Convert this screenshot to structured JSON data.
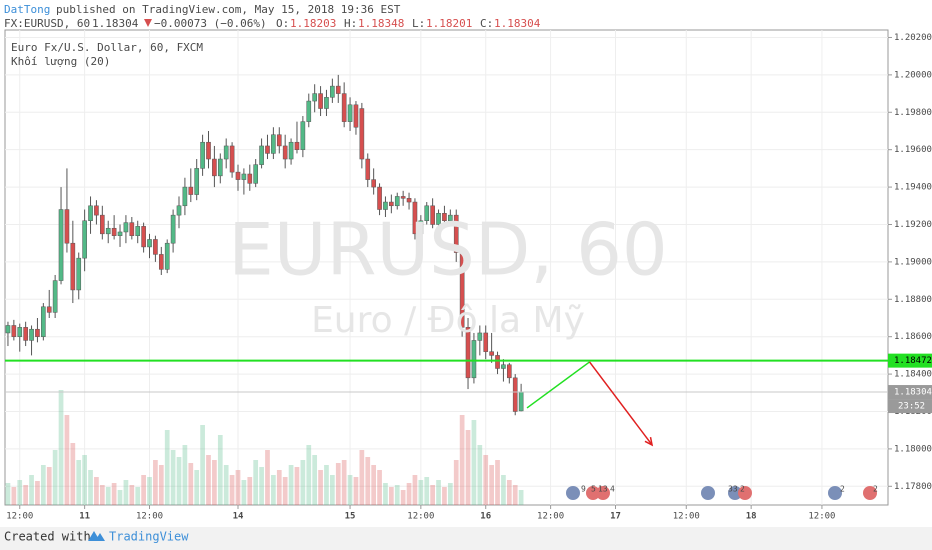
{
  "header": {
    "author": "DatTong",
    "published": "published on TradingView.com, May 15, 2018 19:36 EST",
    "symbol": "FX:EURUSD, 60",
    "last": "1.18304",
    "change": "−0.00073 (−0.06%)",
    "open_label": "O:",
    "open": "1.18203",
    "high_label": "H:",
    "high": "1.18348",
    "low_label": "L:",
    "low": "1.18201",
    "close_label": "C:",
    "close": "1.18304"
  },
  "chart_data": {
    "type": "candlestick",
    "legend": [
      "Euro Fx/U.S. Dollar, 60, FXCM",
      "Khối lượng (20)"
    ],
    "watermark": "EURUSD, 60",
    "watermark_sub": "Euro / Đô la Mỹ",
    "up_color": "#53b987",
    "down_color": "#d64f4f",
    "ohlc": [
      [
        1.1862,
        1.1868,
        1.1855,
        1.1866
      ],
      [
        1.1866,
        1.1869,
        1.1858,
        1.186
      ],
      [
        1.186,
        1.1867,
        1.1852,
        1.1865
      ],
      [
        1.1865,
        1.1868,
        1.1855,
        1.1858
      ],
      [
        1.1858,
        1.1866,
        1.185,
        1.1864
      ],
      [
        1.1864,
        1.187,
        1.1857,
        1.186
      ],
      [
        1.186,
        1.1878,
        1.1858,
        1.1876
      ],
      [
        1.1876,
        1.1885,
        1.187,
        1.1873
      ],
      [
        1.1873,
        1.1893,
        1.187,
        1.189
      ],
      [
        1.189,
        1.194,
        1.1888,
        1.1928
      ],
      [
        1.1928,
        1.195,
        1.1905,
        1.191
      ],
      [
        1.191,
        1.1922,
        1.1878,
        1.1885
      ],
      [
        1.1885,
        1.1905,
        1.188,
        1.1902
      ],
      [
        1.1902,
        1.1928,
        1.1895,
        1.1922
      ],
      [
        1.1922,
        1.1935,
        1.1915,
        1.193
      ],
      [
        1.193,
        1.1933,
        1.192,
        1.1925
      ],
      [
        1.1925,
        1.193,
        1.1912,
        1.1915
      ],
      [
        1.1915,
        1.1922,
        1.191,
        1.1918
      ],
      [
        1.1918,
        1.1925,
        1.1912,
        1.1914
      ],
      [
        1.1914,
        1.192,
        1.1908,
        1.1916
      ],
      [
        1.1916,
        1.1925,
        1.191,
        1.1921
      ],
      [
        1.1921,
        1.1924,
        1.1912,
        1.1914
      ],
      [
        1.1914,
        1.1922,
        1.191,
        1.1919
      ],
      [
        1.1919,
        1.1921,
        1.1905,
        1.1908
      ],
      [
        1.1908,
        1.1915,
        1.1902,
        1.1912
      ],
      [
        1.1912,
        1.1914,
        1.19,
        1.1904
      ],
      [
        1.1904,
        1.1908,
        1.1893,
        1.1896
      ],
      [
        1.1896,
        1.1912,
        1.1894,
        1.191
      ],
      [
        1.191,
        1.1928,
        1.1905,
        1.1925
      ],
      [
        1.1925,
        1.1935,
        1.1918,
        1.193
      ],
      [
        1.193,
        1.1945,
        1.1925,
        1.194
      ],
      [
        1.194,
        1.195,
        1.1932,
        1.1936
      ],
      [
        1.1936,
        1.1955,
        1.1933,
        1.195
      ],
      [
        1.195,
        1.1968,
        1.1946,
        1.1964
      ],
      [
        1.1964,
        1.197,
        1.195,
        1.1955
      ],
      [
        1.1955,
        1.1962,
        1.194,
        1.1946
      ],
      [
        1.1946,
        1.1958,
        1.1942,
        1.1955
      ],
      [
        1.1955,
        1.1966,
        1.195,
        1.1962
      ],
      [
        1.1962,
        1.1964,
        1.1945,
        1.1948
      ],
      [
        1.1948,
        1.1952,
        1.1938,
        1.1944
      ],
      [
        1.1944,
        1.195,
        1.1936,
        1.1947
      ],
      [
        1.1947,
        1.1952,
        1.1938,
        1.1942
      ],
      [
        1.1942,
        1.1955,
        1.194,
        1.1952
      ],
      [
        1.1952,
        1.1966,
        1.195,
        1.1962
      ],
      [
        1.1962,
        1.1968,
        1.1955,
        1.1958
      ],
      [
        1.1958,
        1.1972,
        1.1955,
        1.1968
      ],
      [
        1.1968,
        1.1972,
        1.1958,
        1.1962
      ],
      [
        1.1962,
        1.1968,
        1.195,
        1.1955
      ],
      [
        1.1955,
        1.1966,
        1.1952,
        1.1964
      ],
      [
        1.1964,
        1.1975,
        1.1958,
        1.196
      ],
      [
        1.196,
        1.1978,
        1.1956,
        1.1975
      ],
      [
        1.1975,
        1.199,
        1.1972,
        1.1986
      ],
      [
        1.1986,
        1.1995,
        1.198,
        1.199
      ],
      [
        1.199,
        1.1994,
        1.1978,
        1.1982
      ],
      [
        1.1982,
        1.1992,
        1.1978,
        1.1988
      ],
      [
        1.1988,
        1.1998,
        1.1985,
        1.1994
      ],
      [
        1.1994,
        1.2,
        1.1985,
        1.199
      ],
      [
        1.199,
        1.1996,
        1.1972,
        1.1975
      ],
      [
        1.1975,
        1.1988,
        1.197,
        1.1984
      ],
      [
        1.1984,
        1.1986,
        1.1968,
        1.1972
      ],
      [
        1.1982,
        1.1985,
        1.195,
        1.1955
      ],
      [
        1.1955,
        1.1958,
        1.194,
        1.1944
      ],
      [
        1.1944,
        1.195,
        1.1936,
        1.194
      ],
      [
        1.194,
        1.1942,
        1.1925,
        1.1928
      ],
      [
        1.1928,
        1.1935,
        1.1924,
        1.1932
      ],
      [
        1.1932,
        1.1936,
        1.1926,
        1.193
      ],
      [
        1.193,
        1.1937,
        1.1928,
        1.1935
      ],
      [
        1.1935,
        1.1938,
        1.193,
        1.1934
      ],
      [
        1.1934,
        1.1937,
        1.1928,
        1.1932
      ],
      [
        1.1932,
        1.1934,
        1.1912,
        1.1915
      ],
      [
        1.1915,
        1.1925,
        1.1912,
        1.1922
      ],
      [
        1.1922,
        1.1932,
        1.192,
        1.193
      ],
      [
        1.193,
        1.1934,
        1.1918,
        1.192
      ],
      [
        1.192,
        1.1928,
        1.1916,
        1.1926
      ],
      [
        1.1926,
        1.193,
        1.1918,
        1.1922
      ],
      [
        1.1922,
        1.1928,
        1.192,
        1.1925
      ],
      [
        1.1925,
        1.1928,
        1.19,
        1.1905
      ],
      [
        1.1905,
        1.1908,
        1.186,
        1.1865
      ],
      [
        1.1865,
        1.187,
        1.1832,
        1.1838
      ],
      [
        1.1838,
        1.1862,
        1.1835,
        1.1858
      ],
      [
        1.1858,
        1.1866,
        1.185,
        1.1862
      ],
      [
        1.1862,
        1.1866,
        1.1848,
        1.1852
      ],
      [
        1.1852,
        1.1862,
        1.1846,
        1.185
      ],
      [
        1.185,
        1.1852,
        1.184,
        1.1843
      ],
      [
        1.1843,
        1.1848,
        1.1836,
        1.1845
      ],
      [
        1.1845,
        1.1846,
        1.1835,
        1.1838
      ],
      [
        1.1838,
        1.184,
        1.1818,
        1.182
      ],
      [
        1.18203,
        1.18348,
        1.18201,
        1.18304
      ]
    ],
    "volumes": [
      22,
      18,
      25,
      20,
      30,
      24,
      40,
      38,
      55,
      115,
      90,
      62,
      45,
      50,
      35,
      28,
      20,
      18,
      22,
      15,
      25,
      20,
      18,
      30,
      28,
      45,
      40,
      75,
      55,
      48,
      60,
      42,
      35,
      80,
      50,
      45,
      70,
      40,
      30,
      35,
      25,
      28,
      45,
      38,
      55,
      30,
      35,
      28,
      40,
      38,
      45,
      60,
      50,
      35,
      40,
      30,
      42,
      45,
      30,
      28,
      55,
      48,
      40,
      35,
      22,
      18,
      20,
      15,
      22,
      30,
      25,
      28,
      20,
      25,
      18,
      22,
      45,
      90,
      75,
      85,
      60,
      50,
      40,
      45,
      30,
      25,
      20,
      15
    ],
    "xlim": [
      -0.5,
      149.2
    ],
    "ylim": [
      1.177,
      1.2024
    ],
    "xticks": [
      {
        "value": 2,
        "label": "12:00"
      },
      {
        "value": 13,
        "label": "11"
      },
      {
        "value": 24,
        "label": "12:00"
      },
      {
        "value": 39,
        "label": "14"
      },
      {
        "value": 58,
        "label": "15"
      },
      {
        "value": 70,
        "label": "12:00"
      },
      {
        "value": 81,
        "label": "16"
      },
      {
        "value": 92,
        "label": "12:00"
      },
      {
        "value": 103,
        "label": "17"
      },
      {
        "value": 115,
        "label": "12:00"
      },
      {
        "value": 126,
        "label": "18"
      },
      {
        "value": 138,
        "label": "12:00"
      }
    ],
    "yticks": [
      {
        "value": 1.178,
        "label": "1.17800"
      },
      {
        "value": 1.18,
        "label": "1.18000"
      },
      {
        "value": 1.182,
        "label": "1.18200"
      },
      {
        "value": 1.184,
        "label": "1.18400"
      },
      {
        "value": 1.186,
        "label": "1.18600"
      },
      {
        "value": 1.188,
        "label": "1.18800"
      },
      {
        "value": 1.19,
        "label": "1.19000"
      },
      {
        "value": 1.192,
        "label": "1.19200"
      },
      {
        "value": 1.194,
        "label": "1.19400"
      },
      {
        "value": 1.196,
        "label": "1.19600"
      },
      {
        "value": 1.198,
        "label": "1.19800"
      },
      {
        "value": 1.2,
        "label": "1.20000"
      },
      {
        "value": 1.202,
        "label": "1.20200"
      }
    ],
    "grid": true,
    "hline": {
      "value": 1.18472,
      "label": "1.18472",
      "color": "#22e022"
    },
    "last_line": {
      "value": 1.18304,
      "label": "1.18304",
      "countdown": "23:52",
      "color": "#9a9a9a"
    },
    "arrows": [
      {
        "x": [
          88,
          98.6
        ],
        "y": [
          1.18219,
          1.18465
        ],
        "color": "#22e022"
      },
      {
        "x": [
          98.6,
          109.2
        ],
        "y": [
          1.18465,
          1.18021
        ],
        "color": "#e02020"
      }
    ],
    "events": [
      "9",
      "5",
      "13",
      "4",
      "33",
      "2",
      "2",
      "2"
    ]
  },
  "footer": {
    "created": "Created with",
    "brand": "TradingView"
  }
}
